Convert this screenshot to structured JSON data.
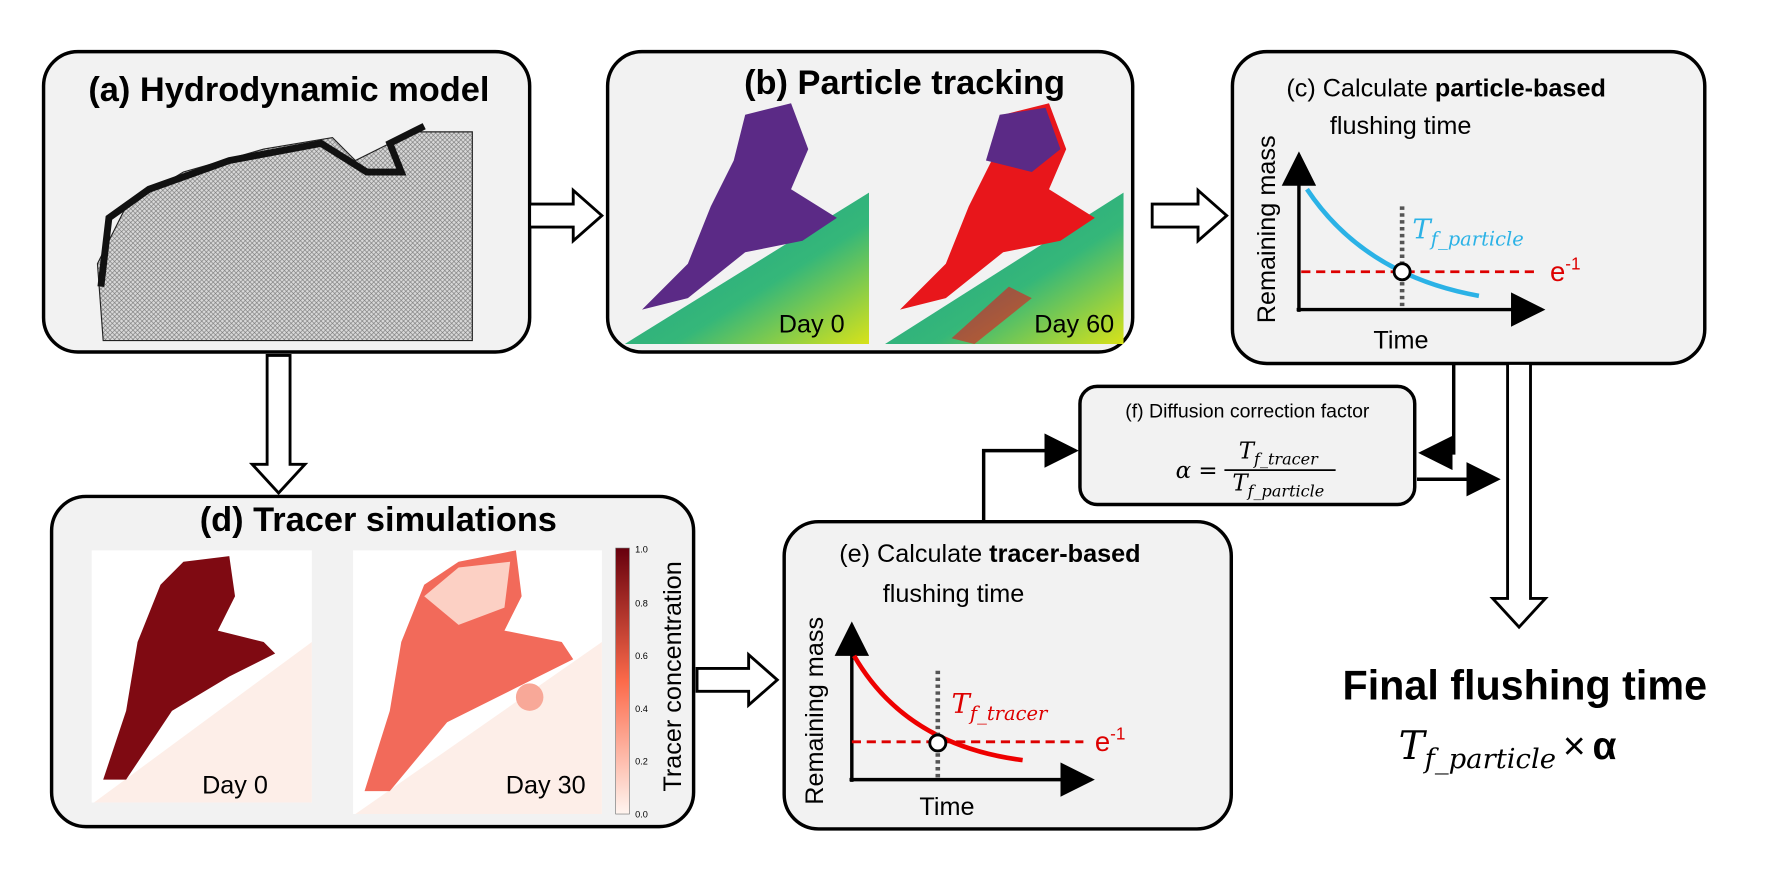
{
  "panel_a": {
    "title": "(a) Hydrodynamic model"
  },
  "panel_b": {
    "title": "(b) Particle tracking",
    "maps": [
      "Day 0",
      "Day 60"
    ]
  },
  "panel_c": {
    "title_prefix": "(c) Calculate",
    "title_bold": "particle-based",
    "title_line2": "flushing time",
    "y_axis": "Remaining mass",
    "x_axis": "Time",
    "marker_symbol": "T",
    "marker_subscript": "f_particle",
    "threshold_base": "e",
    "threshold_exponent": "-1"
  },
  "panel_d": {
    "title": "(d) Tracer simulations",
    "maps": [
      "Day 0",
      "Day 30"
    ],
    "colorbar_label": "Tracer concentration",
    "colorbar_ticks": [
      "0.0",
      "0.2",
      "0.4",
      "0.6",
      "0.8",
      "1.0"
    ]
  },
  "panel_e": {
    "title_prefix": "(e) Calculate",
    "title_bold": "tracer-based",
    "title_line2": "flushing time",
    "y_axis": "Remaining mass",
    "x_axis": "Time",
    "marker_symbol": "T",
    "marker_subscript": "f_tracer",
    "threshold_base": "e",
    "threshold_exponent": "-1"
  },
  "panel_f": {
    "title": "(f) Diffusion correction factor",
    "lhs": "α =",
    "numerator_symbol": "T",
    "numerator_subscript": "f_tracer",
    "denominator_symbol": "T",
    "denominator_subscript": "f_particle"
  },
  "final": {
    "title": "Final flushing time",
    "symbol": "T",
    "subscript": "f_particle",
    "operator": "×",
    "factor": "α"
  }
}
